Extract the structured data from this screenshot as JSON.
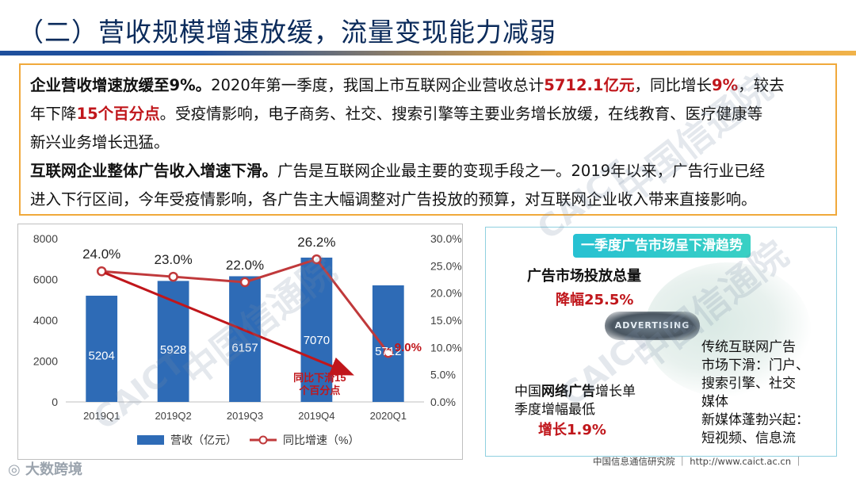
{
  "slide": {
    "title": "（二）营收规模增速放缓，流量变现能力减弱"
  },
  "textbox": {
    "p1_lead": "企业营收增速放缓至9%。",
    "p1_a": "2020年第一季度，我国上市互联网企业营收总计",
    "p1_val1": "5712.1亿元",
    "p1_b": "，同比增长",
    "p1_val2": "9%",
    "p1_c": "，较去",
    "p2_a": "年下降",
    "p2_val": "15个百分点",
    "p2_b": "。受疫情影响，电子商务、社交、搜索引擎等主要业务增长放缓，在线教育、医疗健康等",
    "p3": "新兴业务增长迅猛。",
    "p4_lead": "互联网企业整体广告收入增速下滑。",
    "p4_a": "广告是互联网企业最主要的变现手段之一。2019年以来，广告行业已经",
    "p5": "进入下行区间，今年受疫情影响，各广告主大幅调整对广告投放的预算，对互联网企业收入带来直接影响。"
  },
  "chart_data": {
    "type": "bar",
    "categories": [
      "2019Q1",
      "2019Q2",
      "2019Q3",
      "2019Q4",
      "2020Q1"
    ],
    "series": [
      {
        "name": "营收（亿元）",
        "type": "bar",
        "axis": "left",
        "values": [
          5204,
          5928,
          6157,
          7070,
          5712
        ],
        "labels": [
          "5204",
          "5928",
          "6157",
          "7070",
          "5712"
        ],
        "color": "#2e6bb6"
      },
      {
        "name": "同比增速（%）",
        "type": "line",
        "axis": "right",
        "values": [
          24.0,
          23.0,
          22.0,
          26.2,
          9.0
        ],
        "labels": [
          "24.0%",
          "23.0%",
          "22.0%",
          "26.2%",
          "9.0%"
        ],
        "color": "#c0393b"
      }
    ],
    "ylim_left": [
      0,
      8000
    ],
    "yticks_left": [
      "0",
      "2000",
      "4000",
      "6000",
      "8000"
    ],
    "ylim_right": [
      0,
      30
    ],
    "yticks_right": [
      "0.0%",
      "5.0%",
      "10.0%",
      "15.0%",
      "20.0%",
      "25.0%",
      "30.0%"
    ],
    "annotation": "同比下滑15个百分点",
    "legend_position": "bottom",
    "grid": false
  },
  "right_panel": {
    "tag": "一季度广告市场呈下滑趋势",
    "total_label": "广告市场投放总量",
    "total_value": "降幅25.5%",
    "adv_text": "ADVERTISING",
    "traditional_line1": "传统互联网广告",
    "traditional_line2": "市场下滑：门户、",
    "traditional_line3": "搜索引擎、社交",
    "traditional_line4": "媒体",
    "newmedia_line1": "新媒体蓬勃兴起：",
    "newmedia_line2": "短视频、信息流",
    "china_line1_a": "中国",
    "china_line1_b": "网络广告",
    "china_line1_c": "增长单",
    "china_line2": "季度增幅最低",
    "china_value": "增长1.9%"
  },
  "footer": {
    "logo": "大数跨境",
    "right": "中国信息通信研究院 ｜ http://www.caict.ac.cn ｜"
  },
  "watermark": {
    "text_cn": "中国信通院",
    "text_en": "CAICT"
  }
}
